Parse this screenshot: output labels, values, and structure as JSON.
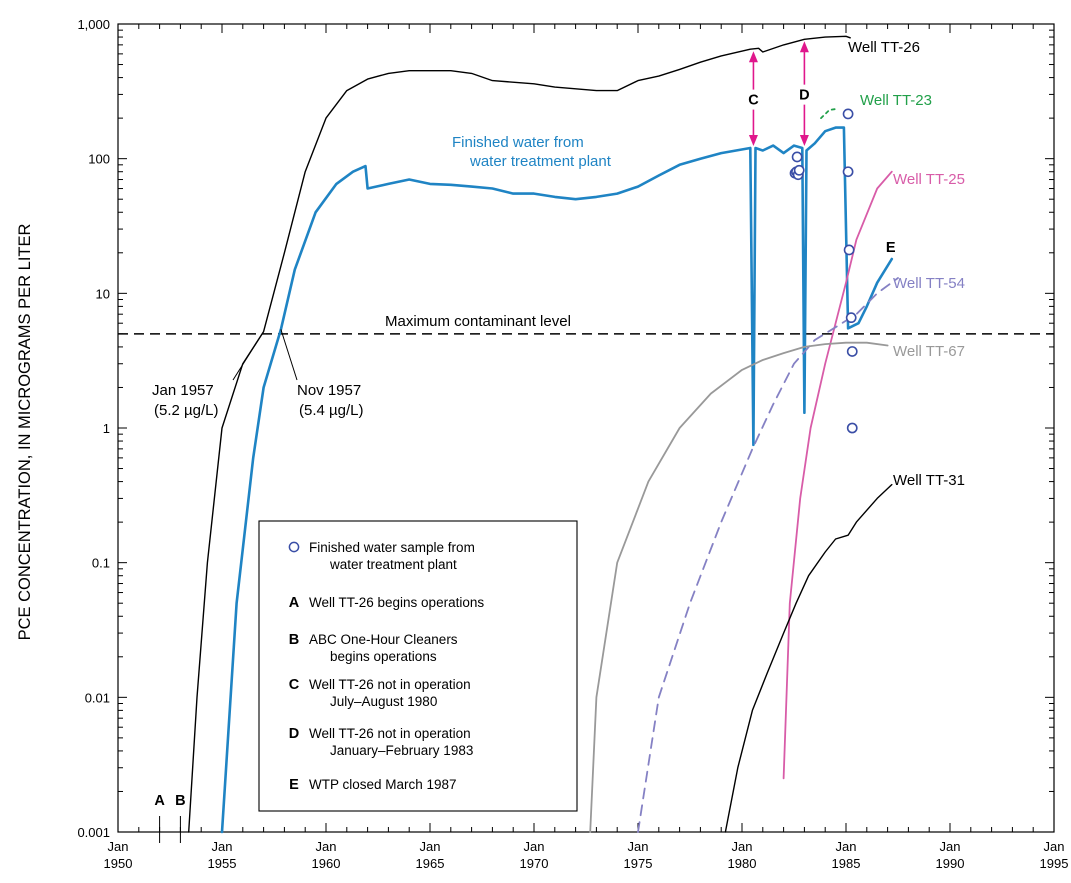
{
  "chart_data": {
    "type": "line",
    "ylabel": "PCE CONCENTRATION, IN MICROGRAMS PER LITER",
    "xlabel": "",
    "yscale": "log",
    "ylim": [
      0.001,
      1000
    ],
    "xlim": [
      1950,
      1995
    ],
    "x_ticks": [
      {
        "value": 1950,
        "line1": "Jan",
        "line2": "1950"
      },
      {
        "value": 1955,
        "line1": "Jan",
        "line2": "1955"
      },
      {
        "value": 1960,
        "line1": "Jan",
        "line2": "1960"
      },
      {
        "value": 1965,
        "line1": "Jan",
        "line2": "1965"
      },
      {
        "value": 1970,
        "line1": "Jan",
        "line2": "1970"
      },
      {
        "value": 1975,
        "line1": "Jan",
        "line2": "1975"
      },
      {
        "value": 1980,
        "line1": "Jan",
        "line2": "1980"
      },
      {
        "value": 1985,
        "line1": "Jan",
        "line2": "1985"
      },
      {
        "value": 1990,
        "line1": "Jan",
        "line2": "1990"
      },
      {
        "value": 1995,
        "line1": "Jan",
        "line2": "1995"
      }
    ],
    "y_ticks": [
      {
        "value": 0.001,
        "label": "0.001"
      },
      {
        "value": 0.01,
        "label": "0.01"
      },
      {
        "value": 0.1,
        "label": "0.1"
      },
      {
        "value": 1,
        "label": "1"
      },
      {
        "value": 10,
        "label": "10"
      },
      {
        "value": 100,
        "label": "100"
      },
      {
        "value": 1000,
        "label": "1,000"
      }
    ],
    "grid": false,
    "mcl": {
      "value": 5,
      "label": "Maximum contaminant level"
    },
    "series": [
      {
        "name": "Well TT-26",
        "color": "#000000",
        "dash": "",
        "points": [
          [
            1953.4,
            0.001
          ],
          [
            1953.8,
            0.01
          ],
          [
            1954.3,
            0.1
          ],
          [
            1955.0,
            1
          ],
          [
            1956.0,
            3
          ],
          [
            1957.0,
            5.2
          ],
          [
            1958,
            20
          ],
          [
            1959,
            80
          ],
          [
            1960,
            200
          ],
          [
            1961,
            320
          ],
          [
            1962,
            390
          ],
          [
            1963,
            430
          ],
          [
            1964,
            450
          ],
          [
            1966,
            450
          ],
          [
            1967,
            430
          ],
          [
            1968,
            380
          ],
          [
            1970,
            360
          ],
          [
            1971,
            340
          ],
          [
            1972,
            330
          ],
          [
            1973,
            320
          ],
          [
            1974,
            320
          ],
          [
            1975,
            380
          ],
          [
            1976,
            410
          ],
          [
            1977,
            460
          ],
          [
            1978,
            520
          ],
          [
            1979,
            580
          ],
          [
            1980.4,
            650
          ],
          [
            1980.8,
            660
          ],
          [
            1981,
            620
          ],
          [
            1982,
            700
          ],
          [
            1983,
            770
          ],
          [
            1984,
            800
          ],
          [
            1985,
            810
          ],
          [
            1985.2,
            790
          ]
        ]
      },
      {
        "name": "Finished water from water treatment plant",
        "color": "#1F84C4",
        "dash": "",
        "points": [
          [
            1955.0,
            0.001
          ],
          [
            1955.7,
            0.05
          ],
          [
            1956.5,
            0.6
          ],
          [
            1957.0,
            2
          ],
          [
            1957.83,
            5.4
          ],
          [
            1958.5,
            15
          ],
          [
            1959.5,
            40
          ],
          [
            1960.5,
            65
          ],
          [
            1961.3,
            80
          ],
          [
            1961.9,
            88
          ],
          [
            1962.0,
            60
          ],
          [
            1963,
            65
          ],
          [
            1964,
            70
          ],
          [
            1965,
            65
          ],
          [
            1966,
            64
          ],
          [
            1967,
            62
          ],
          [
            1968,
            60
          ],
          [
            1969,
            55
          ],
          [
            1970,
            55
          ],
          [
            1971,
            52
          ],
          [
            1972,
            50
          ],
          [
            1973,
            52
          ],
          [
            1974,
            55
          ],
          [
            1975,
            62
          ],
          [
            1976,
            75
          ],
          [
            1977,
            90
          ],
          [
            1978,
            100
          ],
          [
            1979,
            110
          ],
          [
            1980.4,
            120
          ],
          [
            1980.55,
            0.75
          ],
          [
            1980.65,
            120
          ],
          [
            1981,
            115
          ],
          [
            1981.5,
            125
          ],
          [
            1982,
            110
          ],
          [
            1982.5,
            125
          ],
          [
            1982.9,
            120
          ],
          [
            1983.0,
            1.3
          ],
          [
            1983.1,
            115
          ],
          [
            1983.5,
            130
          ],
          [
            1984,
            160
          ],
          [
            1984.5,
            170
          ],
          [
            1984.9,
            170
          ],
          [
            1985.1,
            5.5
          ],
          [
            1985.6,
            6
          ],
          [
            1986,
            8
          ],
          [
            1986.5,
            12
          ],
          [
            1987.2,
            18
          ]
        ]
      },
      {
        "name": "Well TT-23",
        "color": "#22A04A",
        "dash": "3,4",
        "points": [
          [
            1983.8,
            200
          ],
          [
            1984.2,
            230
          ],
          [
            1984.6,
            235
          ]
        ]
      },
      {
        "name": "Well TT-25",
        "color": "#D85CA8",
        "dash": "",
        "points": [
          [
            1982.0,
            0.0025
          ],
          [
            1982.3,
            0.05
          ],
          [
            1982.8,
            0.3
          ],
          [
            1983.3,
            1
          ],
          [
            1984.0,
            3
          ],
          [
            1984.5,
            6
          ],
          [
            1985.0,
            12
          ],
          [
            1985.5,
            25
          ],
          [
            1986.5,
            60
          ],
          [
            1987.2,
            80
          ]
        ]
      },
      {
        "name": "Well TT-54",
        "color": "#8581C4",
        "dash": "10,7",
        "points": [
          [
            1975.0,
            0.001
          ],
          [
            1976.0,
            0.01
          ],
          [
            1977.5,
            0.05
          ],
          [
            1979.0,
            0.2
          ],
          [
            1980.5,
            0.7
          ],
          [
            1981.5,
            1.5
          ],
          [
            1982.5,
            3
          ],
          [
            1983.5,
            4.5
          ],
          [
            1984.5,
            5.6
          ],
          [
            1985.5,
            7
          ],
          [
            1986.5,
            10
          ],
          [
            1987.5,
            13
          ]
        ]
      },
      {
        "name": "Well TT-67",
        "color": "#999999",
        "dash": "",
        "points": [
          [
            1972.7,
            0.001
          ],
          [
            1973.0,
            0.01
          ],
          [
            1974.0,
            0.1
          ],
          [
            1975.5,
            0.4
          ],
          [
            1977.0,
            1
          ],
          [
            1978.5,
            1.8
          ],
          [
            1980.0,
            2.7
          ],
          [
            1981.0,
            3.2
          ],
          [
            1982.0,
            3.6
          ],
          [
            1983.0,
            4
          ],
          [
            1984.0,
            4.2
          ],
          [
            1985.0,
            4.3
          ],
          [
            1986.0,
            4.3
          ],
          [
            1987.0,
            4.1
          ]
        ]
      },
      {
        "name": "Well TT-31",
        "color": "#000000",
        "dash": "",
        "points": [
          [
            1979.2,
            0.001
          ],
          [
            1979.8,
            0.003
          ],
          [
            1980.5,
            0.008
          ],
          [
            1981.2,
            0.015
          ],
          [
            1982.0,
            0.03
          ],
          [
            1982.6,
            0.05
          ],
          [
            1983.2,
            0.08
          ],
          [
            1984.0,
            0.12
          ],
          [
            1984.5,
            0.15
          ],
          [
            1985.1,
            0.16
          ],
          [
            1985.5,
            0.2
          ],
          [
            1986.5,
            0.3
          ],
          [
            1987.2,
            0.38
          ]
        ]
      }
    ],
    "samples": {
      "name": "Finished water sample from water treatment plant",
      "color": "#3A4EA6",
      "points": [
        [
          1982.55,
          78
        ],
        [
          1982.62,
          80
        ],
        [
          1982.7,
          76
        ],
        [
          1982.75,
          82
        ],
        [
          1982.65,
          103
        ],
        [
          1985.1,
          215
        ],
        [
          1985.1,
          80
        ],
        [
          1985.15,
          21
        ],
        [
          1985.25,
          6.6
        ],
        [
          1985.3,
          3.7
        ],
        [
          1985.3,
          1.0
        ]
      ]
    },
    "annotations": [
      {
        "id": "jan-1957",
        "line1": "Jan 1957",
        "line2": "(5.2 µg/L)",
        "x": 1957.0,
        "y": 5.2
      },
      {
        "id": "nov-1957",
        "line1": "Nov 1957",
        "line2": "(5.4 µg/L)",
        "x": 1957.83,
        "y": 5.4
      }
    ],
    "markers": [
      {
        "key": "A",
        "x": 1952.0
      },
      {
        "key": "B",
        "x": 1953.0
      },
      {
        "key": "C",
        "x": 1980.55
      },
      {
        "key": "D",
        "x": 1983.0
      },
      {
        "key": "E",
        "x": 1987.2
      }
    ],
    "series_labels": {
      "tt26": "Well TT-26",
      "finished_line1": "Finished water from",
      "finished_line2": "water treatment plant",
      "tt23": "Well TT-23",
      "tt25": "Well TT-25",
      "tt54": "Well TT-54",
      "tt67": "Well TT-67",
      "tt31": "Well TT-31"
    },
    "legend": {
      "placement": "lower-center",
      "items": [
        {
          "key": "",
          "symbol": "circle",
          "lines": [
            "Finished water sample from",
            "water treatment plant"
          ]
        },
        {
          "key": "A",
          "lines": [
            "Well TT-26 begins operations"
          ]
        },
        {
          "key": "B",
          "lines": [
            "ABC One-Hour Cleaners",
            "begins operations"
          ]
        },
        {
          "key": "C",
          "lines": [
            "Well TT-26 not in operation",
            "July–August 1980"
          ]
        },
        {
          "key": "D",
          "lines": [
            "Well TT-26 not in operation",
            "January–February 1983"
          ]
        },
        {
          "key": "E",
          "lines": [
            "WTP closed March 1987"
          ]
        }
      ]
    },
    "colors": {
      "tt26": "#000000",
      "finished": "#1F84C4",
      "tt23": "#22A04A",
      "tt25": "#D85CA8",
      "tt54": "#8581C4",
      "tt67": "#999999",
      "tt31": "#000000",
      "samples": "#3A4EA6",
      "arrows": "#E0178C"
    }
  }
}
